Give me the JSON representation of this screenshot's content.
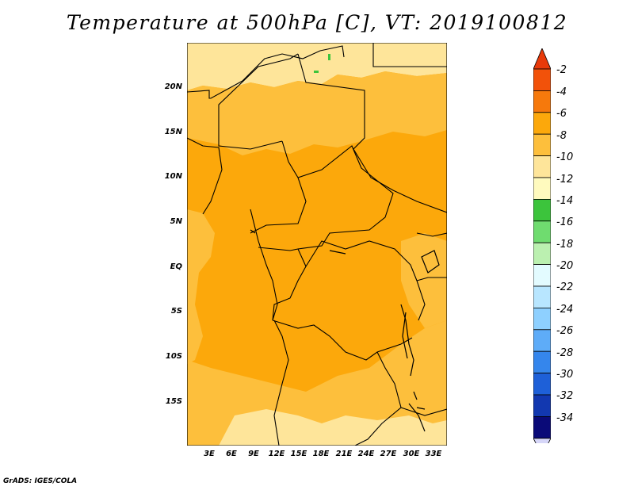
{
  "title": "Temperature at 500hPa [C], VT: 2019100812",
  "credit": "GrADS: IGES/COLA",
  "map": {
    "latitude_labels": [
      "20N",
      "15N",
      "10N",
      "5N",
      "EQ",
      "5S",
      "10S",
      "15S"
    ],
    "longitude_labels": [
      "3E",
      "6E",
      "9E",
      "12E",
      "15E",
      "18E",
      "21E",
      "24E",
      "27E",
      "30E",
      "33E"
    ],
    "fill_colors": {
      "light": "#fee59a",
      "mid": "#fdbf3c",
      "main": "#fca80b",
      "green": "#3cc43c"
    }
  },
  "colorbar": {
    "labels": [
      "-2",
      "-4",
      "-6",
      "-8",
      "-10",
      "-12",
      "-14",
      "-16",
      "-18",
      "-20",
      "-22",
      "-24",
      "-26",
      "-28",
      "-30",
      "-32",
      "-34"
    ],
    "colors": [
      "#f2520a",
      "#f6790c",
      "#fca80b",
      "#fdbf3c",
      "#fee59a",
      "#fffabe",
      "#3cc43c",
      "#6fdc6f",
      "#bbf0b0",
      "#e3fbff",
      "#b8e6ff",
      "#8ed0ff",
      "#5eacf8",
      "#3586ec",
      "#1e60d8",
      "#1238b0",
      "#0a0a78"
    ],
    "top_arrow_color": "#e83a0a",
    "bottom_arrow_color": "#d6d6f8"
  }
}
